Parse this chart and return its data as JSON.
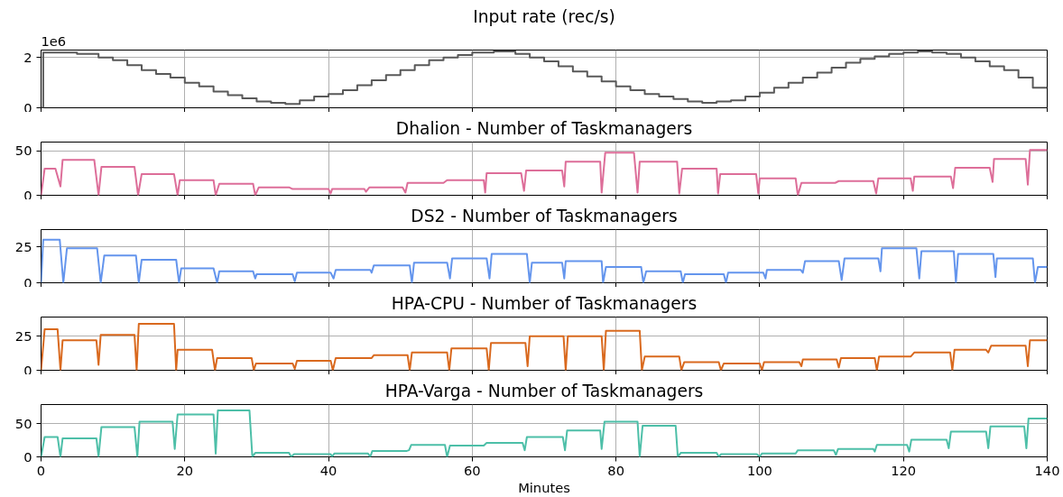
{
  "chart_data": [
    {
      "type": "step",
      "title": "Input rate (rec/s)",
      "annotations": [
        "1e6"
      ],
      "xlim": [
        0,
        140
      ],
      "xticks": [
        0,
        20,
        40,
        60,
        80,
        100,
        120,
        140
      ],
      "ylim": [
        0,
        2.3
      ],
      "yticks": [
        0,
        2
      ],
      "grid": true,
      "tick_labels": "y",
      "series": [
        {
          "color": "#595959",
          "x": [
            0,
            0.3,
            5,
            8,
            10,
            12,
            14,
            16,
            18,
            20,
            22,
            24,
            26,
            28,
            30,
            32,
            34,
            36,
            38,
            40,
            42,
            44,
            46,
            48,
            50,
            52,
            54,
            56,
            58,
            60,
            63,
            66,
            68,
            70,
            72,
            74,
            76,
            78,
            80,
            82,
            84,
            86,
            88,
            90,
            92,
            94,
            96,
            98,
            100,
            102,
            104,
            106,
            108,
            110,
            112,
            114,
            116,
            118,
            120,
            122,
            124,
            126,
            128,
            130,
            132,
            134,
            136,
            138,
            140
          ],
          "values": [
            0,
            2.2,
            2.15,
            2.0,
            1.9,
            1.7,
            1.5,
            1.35,
            1.2,
            1.0,
            0.85,
            0.65,
            0.5,
            0.38,
            0.25,
            0.2,
            0.15,
            0.3,
            0.45,
            0.55,
            0.7,
            0.9,
            1.1,
            1.3,
            1.5,
            1.7,
            1.9,
            2.0,
            2.1,
            2.2,
            2.25,
            2.15,
            2.0,
            1.85,
            1.65,
            1.45,
            1.25,
            1.05,
            0.85,
            0.7,
            0.55,
            0.45,
            0.35,
            0.25,
            0.2,
            0.25,
            0.3,
            0.45,
            0.6,
            0.8,
            1.0,
            1.2,
            1.4,
            1.6,
            1.8,
            1.95,
            2.05,
            2.15,
            2.2,
            2.25,
            2.2,
            2.15,
            2.0,
            1.85,
            1.65,
            1.5,
            1.2,
            0.8,
            0.8
          ]
        }
      ]
    },
    {
      "type": "line",
      "title": "Dhalion - Number of Taskmanagers",
      "xlim": [
        0,
        140
      ],
      "xticks": [
        0,
        20,
        40,
        60,
        80,
        100,
        120,
        140
      ],
      "ylim": [
        0,
        60
      ],
      "yticks": [
        0,
        50
      ],
      "grid": true,
      "tick_labels": "y",
      "series": [
        {
          "color": "#dd6e99",
          "x": [
            0,
            0.5,
            2,
            2.7,
            3,
            7.4,
            8,
            8.4,
            13,
            13.5,
            14,
            18.5,
            19,
            19.3,
            24,
            24.3,
            24.8,
            29.5,
            29.8,
            30.3,
            34.5,
            35,
            40,
            40.3,
            40.5,
            45,
            45.2,
            45.7,
            50.3,
            50.7,
            51,
            56,
            56.5,
            61.6,
            61.8,
            62,
            66.8,
            67.2,
            67.5,
            72.5,
            72.8,
            73,
            77.8,
            78,
            78.5,
            82.5,
            83,
            83.3,
            88.5,
            88.8,
            89.2,
            94,
            94.2,
            94.5,
            99.5,
            99.8,
            100,
            105,
            105.3,
            105.8,
            110.5,
            111,
            115.8,
            116.2,
            116.5,
            121,
            121.3,
            121.5,
            126.6,
            126.9,
            127.2,
            132,
            132.4,
            132.6,
            137,
            137.3,
            137.6,
            140
          ],
          "values": [
            0,
            30,
            30,
            10,
            40,
            40,
            0,
            32,
            32,
            0,
            24,
            24,
            0,
            17,
            17,
            0,
            13,
            13,
            0,
            9,
            9,
            7,
            7,
            2,
            7,
            7,
            4,
            9,
            9,
            3,
            14,
            14,
            17,
            17,
            3,
            25,
            25,
            5,
            28,
            28,
            10,
            38,
            38,
            3,
            48,
            48,
            3,
            38,
            38,
            2,
            30,
            30,
            2,
            24,
            24,
            2,
            19,
            19,
            0,
            14,
            14,
            16,
            16,
            2,
            19,
            19,
            5,
            21,
            21,
            8,
            31,
            31,
            15,
            41,
            41,
            12,
            51,
            51
          ]
        }
      ]
    },
    {
      "type": "line",
      "title": "DS2 - Number of Taskmanagers",
      "xlim": [
        0,
        140
      ],
      "xticks": [
        0,
        20,
        40,
        60,
        80,
        100,
        120,
        140
      ],
      "ylim": [
        0,
        37
      ],
      "yticks": [
        0,
        25
      ],
      "grid": true,
      "tick_labels": "y",
      "series": [
        {
          "color": "#6495ed",
          "x": [
            0,
            0.3,
            2.6,
            3.1,
            3.6,
            7.8,
            8.3,
            8.8,
            13.2,
            13.6,
            14,
            18.8,
            19.2,
            19.5,
            24,
            24.5,
            24.8,
            29.5,
            29.8,
            30,
            35,
            35.3,
            35.6,
            40.3,
            40.7,
            41,
            45.8,
            46,
            46.3,
            51.3,
            51.6,
            51.9,
            56.5,
            56.9,
            57.2,
            62,
            62.4,
            62.7,
            67.6,
            68,
            68.3,
            72.5,
            72.8,
            73,
            78,
            78.2,
            78.6,
            83.5,
            83.8,
            84.2,
            89,
            89.3,
            89.6,
            95,
            95.3,
            95.6,
            100.5,
            100.8,
            101,
            105.7,
            106,
            106.3,
            111,
            111.4,
            111.8,
            116.5,
            116.8,
            117,
            121.8,
            122.2,
            122.5,
            127,
            127.3,
            127.6,
            132.5,
            132.8,
            133,
            138,
            138.3,
            138.7,
            140
          ],
          "values": [
            0,
            30,
            30,
            0,
            24,
            24,
            0,
            19,
            19,
            0,
            16,
            16,
            0,
            10,
            10,
            0,
            8,
            8,
            3,
            6,
            6,
            1,
            7,
            7,
            3,
            9,
            9,
            7,
            12,
            12,
            0,
            14,
            14,
            3,
            17,
            17,
            3,
            20,
            20,
            0,
            14,
            14,
            3,
            15,
            15,
            0,
            11,
            11,
            0,
            8,
            8,
            0,
            6,
            6,
            0,
            7,
            7,
            3,
            9,
            9,
            7,
            15,
            15,
            2,
            17,
            17,
            8,
            24,
            24,
            3,
            22,
            22,
            0,
            20,
            20,
            4,
            17,
            17,
            0,
            11,
            11
          ]
        }
      ]
    },
    {
      "type": "line",
      "title": "HPA-CPU - Number of Taskmanagers",
      "xlim": [
        0,
        140
      ],
      "xticks": [
        0,
        20,
        40,
        60,
        80,
        100,
        120,
        140
      ],
      "ylim": [
        0,
        39
      ],
      "yticks": [
        0,
        25
      ],
      "grid": true,
      "tick_labels": "y",
      "series": [
        {
          "color": "#d9691e",
          "x": [
            0,
            0.5,
            2.3,
            2.7,
            3,
            7.7,
            8,
            8.3,
            13,
            13.3,
            13.6,
            18.5,
            18.8,
            19,
            23.8,
            24.2,
            24.5,
            29.3,
            29.6,
            29.9,
            35,
            35.3,
            35.6,
            40.3,
            40.6,
            41,
            46,
            46.3,
            51,
            51.3,
            51.6,
            56.5,
            56.8,
            57.1,
            62,
            62.3,
            62.6,
            67.4,
            67.7,
            68,
            72.7,
            73,
            73.3,
            78,
            78.3,
            78.6,
            83.3,
            83.6,
            84,
            88.8,
            89.1,
            89.5,
            94.3,
            94.6,
            95,
            100,
            100.3,
            100.6,
            105.5,
            105.8,
            106,
            110.7,
            111,
            111.3,
            116,
            116.3,
            116.6,
            121,
            121.5,
            126.5,
            126.8,
            127.1,
            131.5,
            131.8,
            132.2,
            137,
            137.3,
            137.6,
            140
          ],
          "values": [
            0,
            30,
            30,
            0,
            22,
            22,
            4,
            26,
            26,
            0,
            34,
            34,
            0,
            15,
            15,
            0,
            9,
            9,
            0,
            5,
            5,
            1,
            7,
            7,
            0,
            9,
            9,
            11,
            11,
            0,
            13,
            13,
            0,
            16,
            16,
            0,
            20,
            20,
            3,
            25,
            25,
            0,
            25,
            25,
            0,
            29,
            29,
            0,
            10,
            10,
            0,
            6,
            6,
            0,
            5,
            5,
            0,
            6,
            6,
            3,
            8,
            8,
            2,
            9,
            9,
            0,
            10,
            10,
            13,
            13,
            0,
            15,
            15,
            13,
            18,
            18,
            3,
            22,
            22
          ]
        }
      ]
    },
    {
      "type": "line",
      "title": "HPA-Varga - Number of Taskmanagers",
      "xlabel": "Minutes",
      "xlim": [
        0,
        140
      ],
      "xticks": [
        0,
        20,
        40,
        60,
        80,
        100,
        120,
        140
      ],
      "ylim": [
        0,
        79
      ],
      "yticks": [
        0,
        50
      ],
      "grid": true,
      "series": [
        {
          "color": "#4dbfa8",
          "x": [
            0,
            0.5,
            2.3,
            2.7,
            3,
            7.7,
            8,
            8.4,
            13,
            13.4,
            13.7,
            18.3,
            18.6,
            19,
            24,
            24.3,
            24.6,
            29,
            29.4,
            29.8,
            34.5,
            34.8,
            35.2,
            40.3,
            40.5,
            40.8,
            45.5,
            45.8,
            46.1,
            50.9,
            51.2,
            51.5,
            56.2,
            56.5,
            56.9,
            61.6,
            62,
            67,
            67.3,
            67.6,
            72.6,
            72.9,
            73.2,
            77.8,
            78,
            78.4,
            83,
            83.3,
            83.7,
            88.3,
            88.6,
            89,
            94,
            94.3,
            94.6,
            99.6,
            100,
            100.3,
            105,
            105.3,
            110.3,
            110.6,
            110.9,
            115.8,
            116,
            116.3,
            120.5,
            120.8,
            121.1,
            126,
            126.3,
            126.6,
            131.5,
            131.8,
            132.1,
            136.8,
            137.1,
            137.4,
            140
          ],
          "values": [
            0,
            30,
            30,
            0,
            28,
            28,
            0,
            45,
            45,
            0,
            53,
            53,
            12,
            64,
            64,
            5,
            70,
            70,
            0,
            6,
            6,
            0,
            4,
            4,
            0,
            5,
            5,
            0,
            9,
            9,
            10,
            18,
            18,
            0,
            17,
            17,
            21,
            21,
            10,
            30,
            30,
            10,
            40,
            40,
            12,
            53,
            53,
            0,
            47,
            47,
            0,
            6,
            6,
            0,
            4,
            4,
            0,
            5,
            5,
            10,
            10,
            3,
            12,
            12,
            8,
            18,
            18,
            8,
            26,
            26,
            13,
            38,
            38,
            13,
            46,
            46,
            13,
            58,
            58
          ]
        }
      ]
    }
  ]
}
